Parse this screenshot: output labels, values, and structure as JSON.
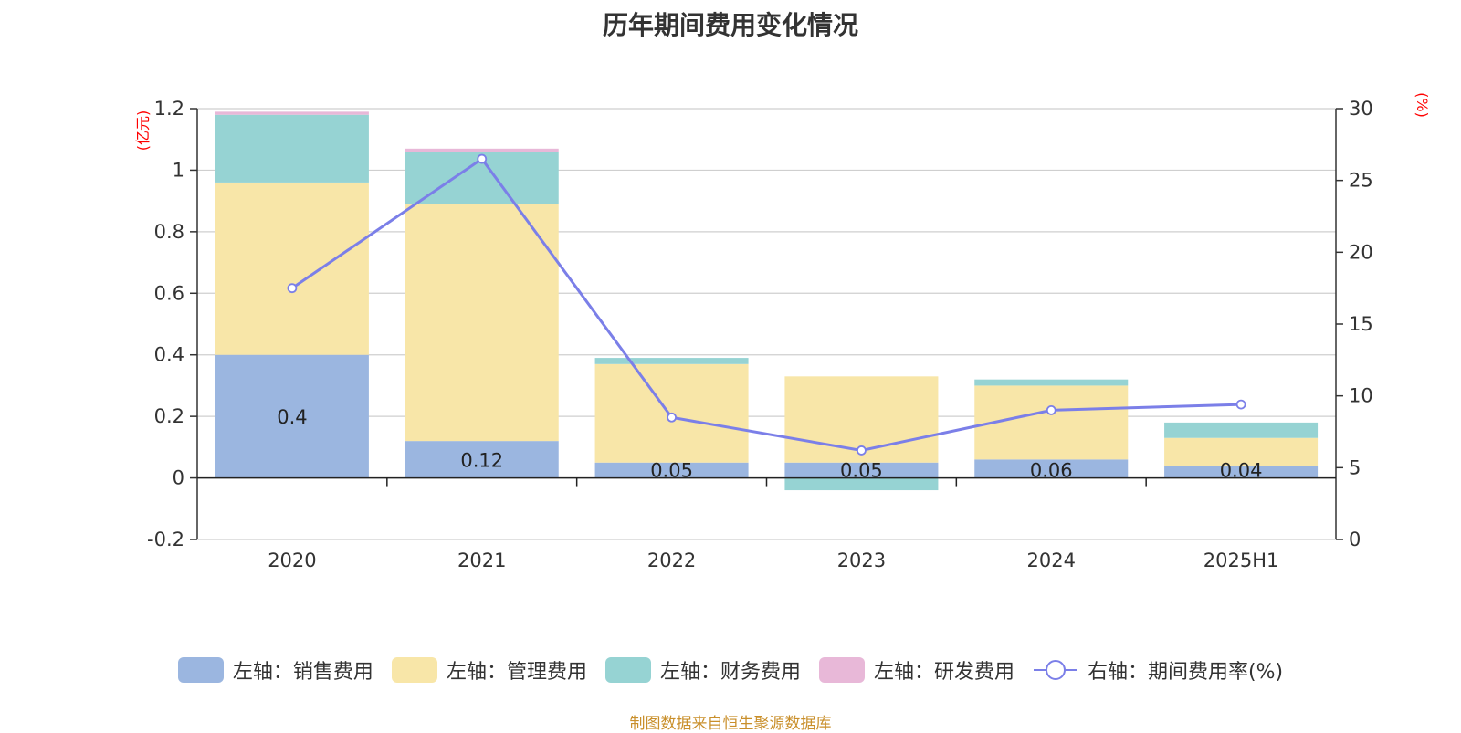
{
  "title": "历年期间费用变化情况",
  "source": "制图数据来自恒生聚源数据库",
  "chart_data": {
    "type": "bar",
    "categories": [
      "2020",
      "2021",
      "2022",
      "2023",
      "2024",
      "2025H1"
    ],
    "left_axis": {
      "unit": "(亿元)",
      "ylim": [
        -0.2,
        1.2
      ],
      "ticks": [
        "-0.2",
        "0",
        "0.2",
        "0.4",
        "0.6",
        "0.8",
        "1",
        "1.2"
      ]
    },
    "right_axis": {
      "unit": "(%)",
      "ylim": [
        0,
        30
      ],
      "ticks": [
        "0",
        "5",
        "10",
        "15",
        "20",
        "25",
        "30"
      ]
    },
    "stacked": true,
    "grid": true,
    "legend_position": "bottom",
    "series": [
      {
        "name": "左轴：销售费用",
        "axis": "left",
        "color": "#9bb6e0",
        "values": [
          0.4,
          0.12,
          0.05,
          0.05,
          0.06,
          0.04
        ],
        "labels": [
          "0.4",
          "0.12",
          "0.05",
          "0.05",
          "0.06",
          "0.04"
        ]
      },
      {
        "name": "左轴：管理费用",
        "axis": "left",
        "color": "#f8e6a8",
        "values": [
          0.56,
          0.77,
          0.32,
          0.28,
          0.24,
          0.09
        ]
      },
      {
        "name": "左轴：财务费用",
        "axis": "left",
        "color": "#96d3d3",
        "values": [
          0.22,
          0.17,
          0.02,
          -0.04,
          0.02,
          0.05
        ]
      },
      {
        "name": "左轴：研发费用",
        "axis": "left",
        "color": "#e8b8d8",
        "values": [
          0.01,
          0.01,
          0,
          0,
          0,
          0
        ]
      },
      {
        "name": "右轴：期间费用率(%)",
        "axis": "right",
        "type": "line",
        "color": "#7b7fe8",
        "values": [
          17.5,
          26.5,
          8.5,
          6.2,
          9.0,
          9.4
        ]
      }
    ]
  }
}
